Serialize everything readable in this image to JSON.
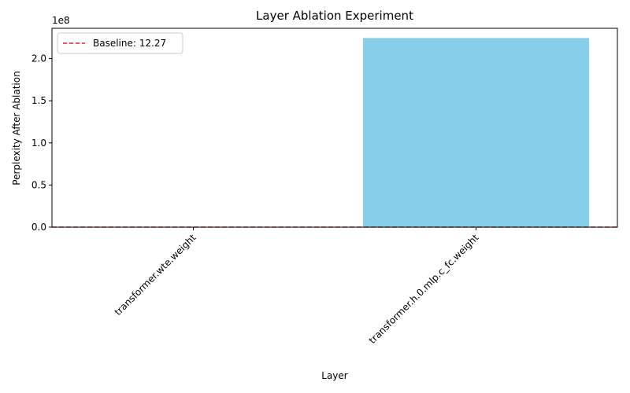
{
  "chart_data": {
    "type": "bar",
    "title": "Layer Ablation Experiment",
    "xlabel": "Layer",
    "ylabel": "Perplexity After Ablation",
    "y_offset_label": "1e8",
    "categories": [
      "transformer.wte.weight",
      "transformer.h.0.mlp.c_fc.weight"
    ],
    "values": [
      0,
      224500000
    ],
    "ylim": [
      0,
      236000000
    ],
    "yticks": [
      0,
      50000000,
      100000000,
      150000000,
      200000000
    ],
    "ytick_labels": [
      "0.0",
      "0.5",
      "1.0",
      "1.5",
      "2.0"
    ],
    "bar_color": "#87CEEB",
    "baseline": {
      "value": 12.27,
      "label": "Baseline: 12.27",
      "color": "#d62728",
      "style": "dashed"
    },
    "legend_position": "upper-left",
    "grid": false
  }
}
